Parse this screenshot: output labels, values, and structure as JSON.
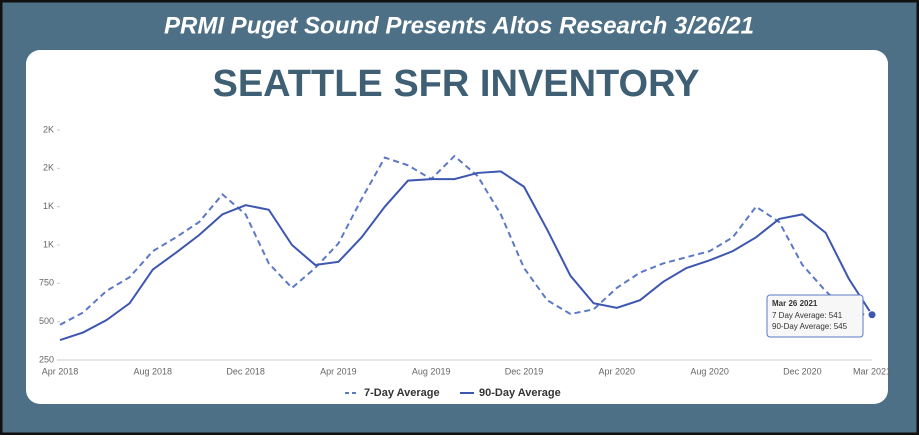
{
  "header": "PRMI Puget Sound Presents Altos Research 3/26/21",
  "chart_data": {
    "type": "line",
    "title": "SEATTLE SFR INVENTORY",
    "categories": [
      "Apr 2018",
      null,
      null,
      null,
      "Aug 2018",
      null,
      null,
      null,
      "Dec 2018",
      null,
      null,
      null,
      "Apr 2019",
      null,
      null,
      null,
      "Aug 2019",
      null,
      null,
      null,
      "Dec 2019",
      null,
      null,
      null,
      "Apr 2020",
      null,
      null,
      null,
      "Aug 2020",
      null,
      null,
      null,
      "Dec 2020",
      null,
      null,
      "Mar 2021"
    ],
    "series": [
      {
        "name": "7-Day Average",
        "color": "#5b79c4",
        "dash": true,
        "values": [
          480,
          560,
          700,
          790,
          960,
          1050,
          1150,
          1330,
          1200,
          880,
          720,
          850,
          1010,
          1300,
          1570,
          1520,
          1430,
          1580,
          1450,
          1200,
          850,
          640,
          550,
          580,
          720,
          820,
          880,
          920,
          960,
          1050,
          1250,
          1150,
          870,
          700,
          560,
          541
        ]
      },
      {
        "name": "90-Day Average",
        "color": "#3d56b0",
        "dash": false,
        "values": [
          380,
          430,
          510,
          620,
          840,
          950,
          1065,
          1200,
          1260,
          1230,
          1000,
          870,
          890,
          1050,
          1250,
          1420,
          1430,
          1430,
          1470,
          1480,
          1380,
          1100,
          800,
          620,
          590,
          640,
          760,
          850,
          900,
          960,
          1050,
          1170,
          1200,
          1080,
          780,
          545
        ]
      }
    ],
    "ylim": [
      250,
      1750
    ],
    "yticks": [
      250,
      500,
      750,
      {
        "value": 1000,
        "label": "1K"
      },
      {
        "value": 1250,
        "label": "1K"
      },
      {
        "value": 1500,
        "label": "2K"
      },
      {
        "value": 1750,
        "label": "2K"
      }
    ],
    "grid": false,
    "legend": "bottom",
    "tooltip": {
      "title": "Mar 26 2021",
      "rows": [
        "7 Day Average:",
        "90-Day Average:"
      ]
    }
  }
}
